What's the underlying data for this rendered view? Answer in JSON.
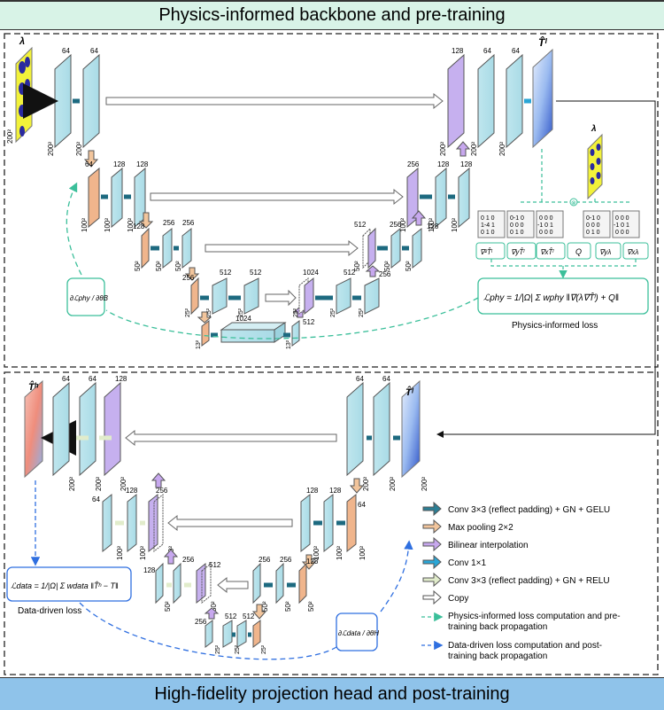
{
  "top_banner": "Physics-informed backbone and pre-training",
  "bottom_banner": "High-fidelity projection head and post-training",
  "top": {
    "lambda_symbol": "λ",
    "input_size": "200²",
    "ch_64": "64",
    "ch_128": "128",
    "ch_256": "256",
    "ch_512": "512",
    "ch_1024": "1024",
    "size_200": "200²",
    "size_100": "100²",
    "size_50": "50²",
    "size_25": "25²",
    "size_13": "13²",
    "output_symbol": "T̂ˡ",
    "grad_backbone": "∂ℒphy / ∂θB",
    "phys_loss_formula": "ℒphy = 1/|Ω| Σ wphy ‖∇(λ∇T̂ˡ) + Q‖",
    "phys_loss_label": "Physics-informed loss",
    "operators": [
      "∇²T̂ˡ",
      "∇yT̂ˡ",
      "∇xT̂ˡ",
      "Q",
      "∇yλ",
      "∇xλ"
    ],
    "kernels": [
      [
        "0 1 0",
        "1-4 1",
        "0 1 0"
      ],
      [
        "0-1 0",
        "0 0 0",
        "0 1 0"
      ],
      [
        "0 0 0",
        "-1 0 1",
        "0 0 0"
      ],
      [
        "0-1 0",
        "0 0 0",
        "0 1 0"
      ],
      [
        "0 0 0",
        "-1 0 1",
        "0 0 0"
      ]
    ]
  },
  "bottom": {
    "output_symbol": "T̂ʰ",
    "input_symbol": "T̂ˡ",
    "ch_64": "64",
    "ch_128": "128",
    "ch_256": "256",
    "ch_512": "512",
    "size_200": "200²",
    "size_100": "100²",
    "size_50": "50²",
    "size_25": "25²",
    "data_loss_formula": "ℒdata = 1/|Ω| Σ wdata ‖T̂ʰ − T‖",
    "data_loss_label": "Data-driven loss",
    "grad_head": "∂ℒdata / ∂θH"
  },
  "legend": [
    {
      "text": "Conv 3×3 (reflect padding) + GN + GELU",
      "color": "#2c7f95"
    },
    {
      "text": "Max pooling 2×2",
      "color": "#f2c59c"
    },
    {
      "text": "Bilinear interpolation",
      "color": "#c7a8ee"
    },
    {
      "text": "Conv 1×1",
      "color": "#2aa6d6"
    },
    {
      "text": "Conv 3×3 (reflect padding) + GN + RELU",
      "color": "#e1eccb"
    },
    {
      "text": "Copy",
      "color": "#ffffff"
    },
    {
      "text": "Physics-informed loss computation and pre-",
      "text2": "training back propagation",
      "color": "#3bbf9a"
    },
    {
      "text": "Data-driven loss computation and post-",
      "text2": "training back propagation",
      "color": "#2f6fe0"
    }
  ]
}
